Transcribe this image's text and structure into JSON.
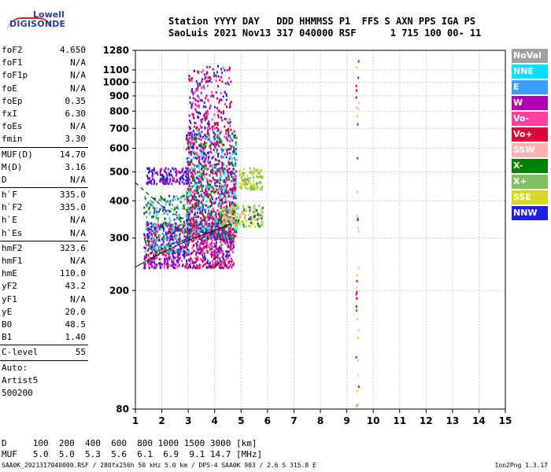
{
  "logo": {
    "line1": "Lowell",
    "line2": "DIGISONDE"
  },
  "header": {
    "line1": "Station YYYY DAY   DDD HHMMSS P1  FFS S AXN PPS IGA PS",
    "line2": "SaoLuis 2021 Nov13 317 040000 RSF      1 715 100 00- 11"
  },
  "scaled": [
    {
      "k": "foF2",
      "v": "4.650"
    },
    {
      "k": "foF1",
      "v": "N/A"
    },
    {
      "k": "foF1p",
      "v": "N/A"
    },
    {
      "k": "foE",
      "v": "N/A"
    },
    {
      "k": "foEp",
      "v": "0.35"
    },
    {
      "k": "fxI",
      "v": "6.30"
    },
    {
      "k": "foEs",
      "v": "N/A"
    },
    {
      "k": "fmin",
      "v": "3.30"
    },
    {
      "k": "MUF(D)",
      "v": "14.70"
    },
    {
      "k": "M(D)",
      "v": "3.16"
    },
    {
      "k": "D",
      "v": "N/A"
    },
    {
      "k": "h`F",
      "v": "335.0"
    },
    {
      "k": "h`F2",
      "v": "335.0"
    },
    {
      "k": "h`E",
      "v": "N/A"
    },
    {
      "k": "h`Es",
      "v": "N/A"
    },
    {
      "k": "hmF2",
      "v": "323.6"
    },
    {
      "k": "hmF1",
      "v": "N/A"
    },
    {
      "k": "hmE",
      "v": "110.0"
    },
    {
      "k": "yF2",
      "v": "43.2"
    },
    {
      "k": "yF1",
      "v": "N/A"
    },
    {
      "k": "yE",
      "v": "20.0"
    },
    {
      "k": "B0",
      "v": "48.5"
    },
    {
      "k": "B1",
      "v": "1.40"
    },
    {
      "k": "C-level",
      "v": "55"
    }
  ],
  "autoscale": [
    "Auto:",
    "Artist5",
    "500200"
  ],
  "legend": [
    {
      "label": "NoVal",
      "color": "#a0a0a0"
    },
    {
      "label": "NNE",
      "color": "#00e0ff"
    },
    {
      "label": "E",
      "color": "#3aa0ff"
    },
    {
      "label": "W",
      "color": "#b000b0"
    },
    {
      "label": "Vo-",
      "color": "#ff40a0"
    },
    {
      "label": "Vo+",
      "color": "#e0003a"
    },
    {
      "label": "SSW",
      "color": "#ffb0b0"
    },
    {
      "label": "X-",
      "color": "#008000"
    },
    {
      "label": "X+",
      "color": "#80c060"
    },
    {
      "label": "SSE",
      "color": "#d8d820"
    },
    {
      "label": "NNW",
      "color": "#2020e0"
    }
  ],
  "bottom": {
    "line1": "D     100  200  400  600  800 1000 1500 3000 [km]",
    "line2": "MUF   5.0  5.0  5.3  5.6  6.1  6.9  9.1 14.7 [MHz]"
  },
  "footer": "SAA0K_2021317040000.RSF / 280fx256h 50 kHz 5.0 km / DPS-4 SAA0K 903 / 2.6 S 315.8 E",
  "footer_right": "Ion2Png 1.3.17",
  "chart_data": {
    "type": "scatter",
    "xlim": [
      1,
      15
    ],
    "ylim": [
      80,
      1280
    ],
    "yscale": "log",
    "grid": true,
    "xticks": [
      "1",
      "2",
      "3",
      "4",
      "5",
      "6",
      "7",
      "8",
      "9",
      "10",
      "11",
      "12",
      "13",
      "14",
      "15"
    ],
    "yticks": [
      {
        "v": 80,
        "label": "80"
      },
      {
        "v": 200,
        "label": "200"
      },
      {
        "v": 300,
        "label": "300"
      },
      {
        "v": 400,
        "label": "400"
      },
      {
        "v": 500,
        "label": "500"
      },
      {
        "v": 600,
        "label": "600"
      },
      {
        "v": 700,
        "label": "700"
      },
      {
        "v": 800,
        "label": "800"
      },
      {
        "v": 900,
        "label": "900"
      },
      {
        "v": 1000,
        "label": "1000"
      },
      {
        "v": 1100,
        "label": "1100"
      },
      {
        "v": 1280,
        "label": "1280"
      }
    ],
    "clusters": [
      {
        "name": "F-trace O",
        "x": [
          1.3,
          4.7
        ],
        "y": [
          240,
          340
        ],
        "colors": [
          "#2020e0",
          "#b000b0",
          "#e0003a",
          "#ff40a0"
        ],
        "n": 900
      },
      {
        "name": "F2 spread",
        "x": [
          2.9,
          4.8
        ],
        "y": [
          300,
          700
        ],
        "colors": [
          "#b000b0",
          "#e0003a",
          "#ff40a0",
          "#2020e0",
          "#008000",
          "#00e0ff"
        ],
        "n": 1300
      },
      {
        "name": "upper spread",
        "x": [
          3.0,
          4.6
        ],
        "y": [
          700,
          1150
        ],
        "colors": [
          "#b000b0",
          "#e0003a",
          "#2020e0",
          "#ff40a0"
        ],
        "n": 220
      },
      {
        "name": "low freq blob",
        "x": [
          1.3,
          3.0
        ],
        "y": [
          270,
          420
        ],
        "colors": [
          "#00e0ff",
          "#3aa0ff",
          "#2020e0",
          "#008000",
          "#80c060"
        ],
        "n": 280
      },
      {
        "name": "second hop",
        "x": [
          1.4,
          3.0
        ],
        "y": [
          460,
          520
        ],
        "colors": [
          "#2020e0",
          "#b000b0"
        ],
        "n": 140
      },
      {
        "name": "X trace",
        "x": [
          4.2,
          5.8
        ],
        "y": [
          330,
          390
        ],
        "colors": [
          "#008000",
          "#80c060",
          "#d8d820",
          "#ffb0b0"
        ],
        "n": 180
      },
      {
        "name": "SSE blob",
        "x": [
          4.9,
          5.8
        ],
        "y": [
          440,
          520
        ],
        "colors": [
          "#d8d820",
          "#80c060"
        ],
        "n": 110
      },
      {
        "name": "high freq column",
        "x": [
          9.33,
          9.43
        ],
        "y": [
          80,
          1280
        ],
        "colors": [
          "#e0003a",
          "#ffb0b0",
          "#b000b0",
          "#d8d820"
        ],
        "n": 40
      }
    ],
    "profile_line": [
      [
        1.0,
        240
      ],
      [
        2.0,
        268
      ],
      [
        3.0,
        295
      ],
      [
        4.0,
        318
      ],
      [
        4.6,
        335
      ]
    ],
    "dashed_line": [
      [
        1.0,
        460
      ],
      [
        1.5,
        420
      ],
      [
        2.0,
        385
      ],
      [
        2.5,
        360
      ],
      [
        3.0,
        342
      ]
    ]
  }
}
